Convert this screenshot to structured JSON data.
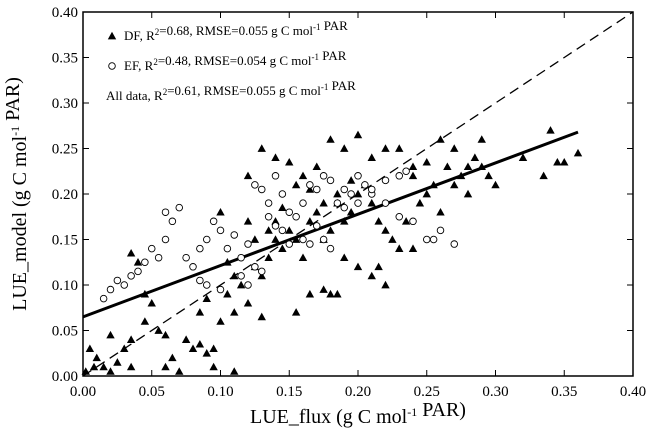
{
  "chart_data": {
    "type": "scatter",
    "title": "",
    "xlabel": "LUE_flux (g C mol-1 PAR)",
    "ylabel": "LUE_model (g C mol-1 PAR)",
    "xlim": [
      0.0,
      0.4
    ],
    "ylim": [
      0.0,
      0.4
    ],
    "x_ticks": [
      "0.00",
      "0.05",
      "0.10",
      "0.15",
      "0.20",
      "0.25",
      "0.30",
      "0.35",
      "0.40"
    ],
    "y_ticks": [
      "0.00",
      "0.05",
      "0.10",
      "0.15",
      "0.20",
      "0.25",
      "0.30",
      "0.35",
      "0.40"
    ],
    "grid": false,
    "legend_position": "top-left",
    "legend": [
      {
        "marker": "filled-triangle",
        "text": "DF, R²=0.68, RMSE=0.055 g C mol⁻¹ PAR"
      },
      {
        "marker": "open-circle",
        "text": "EF, R²=0.48, RMSE=0.054 g C mol⁻¹ PAR"
      },
      {
        "marker": "none",
        "text": "All data, R²=0.61, RMSE=0.055 g C mol⁻¹ PAR"
      }
    ],
    "lines": [
      {
        "name": "1:1",
        "style": "dashed",
        "points": [
          [
            0.0,
            0.0
          ],
          [
            0.4,
            0.4
          ]
        ]
      },
      {
        "name": "regression",
        "style": "solid",
        "points": [
          [
            0.0,
            0.065
          ],
          [
            0.36,
            0.268
          ]
        ]
      }
    ],
    "series": [
      {
        "name": "DF",
        "marker": "filled-triangle",
        "points": [
          [
            0.002,
            0.005
          ],
          [
            0.005,
            0.03
          ],
          [
            0.008,
            0.01
          ],
          [
            0.01,
            0.02
          ],
          [
            0.015,
            0.01
          ],
          [
            0.02,
            0.005
          ],
          [
            0.025,
            0.015
          ],
          [
            0.03,
            0.03
          ],
          [
            0.035,
            0.01
          ],
          [
            0.02,
            0.045
          ],
          [
            0.035,
            0.135
          ],
          [
            0.04,
            0.125
          ],
          [
            0.045,
            0.09
          ],
          [
            0.05,
            0.08
          ],
          [
            0.055,
            0.05
          ],
          [
            0.06,
            0.01
          ],
          [
            0.065,
            0.02
          ],
          [
            0.07,
            0.005
          ],
          [
            0.075,
            0.04
          ],
          [
            0.08,
            0.03
          ],
          [
            0.085,
            0.07
          ],
          [
            0.09,
            0.085
          ],
          [
            0.095,
            0.03
          ],
          [
            0.1,
            0.06
          ],
          [
            0.105,
            0.09
          ],
          [
            0.11,
            0.07
          ],
          [
            0.115,
            0.1
          ],
          [
            0.12,
            0.08
          ],
          [
            0.125,
            0.12
          ],
          [
            0.13,
            0.11
          ],
          [
            0.135,
            0.13
          ],
          [
            0.14,
            0.15
          ],
          [
            0.145,
            0.14
          ],
          [
            0.15,
            0.16
          ],
          [
            0.155,
            0.15
          ],
          [
            0.16,
            0.13
          ],
          [
            0.165,
            0.17
          ],
          [
            0.17,
            0.18
          ],
          [
            0.175,
            0.15
          ],
          [
            0.18,
            0.16
          ],
          [
            0.185,
            0.19
          ],
          [
            0.19,
            0.17
          ],
          [
            0.195,
            0.18
          ],
          [
            0.2,
            0.2
          ],
          [
            0.205,
            0.21
          ],
          [
            0.21,
            0.19
          ],
          [
            0.215,
            0.17
          ],
          [
            0.22,
            0.16
          ],
          [
            0.225,
            0.15
          ],
          [
            0.23,
            0.14
          ],
          [
            0.235,
            0.17
          ],
          [
            0.24,
            0.22
          ],
          [
            0.245,
            0.19
          ],
          [
            0.25,
            0.2
          ],
          [
            0.255,
            0.21
          ],
          [
            0.26,
            0.18
          ],
          [
            0.265,
            0.23
          ],
          [
            0.27,
            0.21
          ],
          [
            0.275,
            0.22
          ],
          [
            0.28,
            0.2
          ],
          [
            0.285,
            0.24
          ],
          [
            0.29,
            0.23
          ],
          [
            0.295,
            0.22
          ],
          [
            0.3,
            0.21
          ],
          [
            0.32,
            0.24
          ],
          [
            0.335,
            0.22
          ],
          [
            0.34,
            0.27
          ],
          [
            0.345,
            0.235
          ],
          [
            0.35,
            0.235
          ],
          [
            0.36,
            0.245
          ],
          [
            0.12,
            0.22
          ],
          [
            0.13,
            0.25
          ],
          [
            0.14,
            0.24
          ],
          [
            0.15,
            0.235
          ],
          [
            0.16,
            0.22
          ],
          [
            0.17,
            0.23
          ],
          [
            0.18,
            0.26
          ],
          [
            0.19,
            0.25
          ],
          [
            0.2,
            0.265
          ],
          [
            0.21,
            0.24
          ],
          [
            0.22,
            0.25
          ],
          [
            0.23,
            0.25
          ],
          [
            0.24,
            0.23
          ],
          [
            0.25,
            0.235
          ],
          [
            0.26,
            0.26
          ],
          [
            0.27,
            0.25
          ],
          [
            0.28,
            0.23
          ],
          [
            0.29,
            0.26
          ],
          [
            0.165,
            0.09
          ],
          [
            0.175,
            0.095
          ],
          [
            0.18,
            0.09
          ],
          [
            0.185,
            0.09
          ],
          [
            0.155,
            0.07
          ],
          [
            0.13,
            0.065
          ],
          [
            0.2,
            0.12
          ],
          [
            0.21,
            0.11
          ],
          [
            0.215,
            0.12
          ],
          [
            0.22,
            0.1
          ],
          [
            0.19,
            0.13
          ],
          [
            0.24,
            0.14
          ],
          [
            0.11,
            0.005
          ],
          [
            0.095,
            0.01
          ],
          [
            0.09,
            0.025
          ],
          [
            0.085,
            0.035
          ],
          [
            0.145,
            0.185
          ],
          [
            0.155,
            0.21
          ],
          [
            0.165,
            0.205
          ],
          [
            0.175,
            0.19
          ],
          [
            0.185,
            0.2
          ],
          [
            0.195,
            0.215
          ],
          [
            0.12,
            0.17
          ],
          [
            0.125,
            0.15
          ],
          [
            0.135,
            0.16
          ],
          [
            0.14,
            0.17
          ],
          [
            0.1,
            0.18
          ],
          [
            0.105,
            0.125
          ],
          [
            0.11,
            0.11
          ],
          [
            0.06,
            0.045
          ],
          [
            0.045,
            0.06
          ],
          [
            0.035,
            0.04
          ]
        ]
      },
      {
        "name": "EF",
        "marker": "open-circle",
        "points": [
          [
            0.015,
            0.085
          ],
          [
            0.02,
            0.095
          ],
          [
            0.025,
            0.105
          ],
          [
            0.03,
            0.1
          ],
          [
            0.035,
            0.11
          ],
          [
            0.04,
            0.115
          ],
          [
            0.045,
            0.125
          ],
          [
            0.05,
            0.14
          ],
          [
            0.055,
            0.13
          ],
          [
            0.06,
            0.15
          ],
          [
            0.06,
            0.18
          ],
          [
            0.065,
            0.17
          ],
          [
            0.07,
            0.185
          ],
          [
            0.075,
            0.13
          ],
          [
            0.08,
            0.12
          ],
          [
            0.085,
            0.14
          ],
          [
            0.09,
            0.15
          ],
          [
            0.095,
            0.17
          ],
          [
            0.1,
            0.16
          ],
          [
            0.105,
            0.14
          ],
          [
            0.11,
            0.155
          ],
          [
            0.115,
            0.13
          ],
          [
            0.12,
            0.145
          ],
          [
            0.125,
            0.21
          ],
          [
            0.13,
            0.205
          ],
          [
            0.135,
            0.19
          ],
          [
            0.14,
            0.22
          ],
          [
            0.145,
            0.2
          ],
          [
            0.15,
            0.18
          ],
          [
            0.155,
            0.175
          ],
          [
            0.16,
            0.19
          ],
          [
            0.165,
            0.21
          ],
          [
            0.17,
            0.205
          ],
          [
            0.175,
            0.22
          ],
          [
            0.18,
            0.215
          ],
          [
            0.185,
            0.19
          ],
          [
            0.19,
            0.205
          ],
          [
            0.195,
            0.2
          ],
          [
            0.2,
            0.22
          ],
          [
            0.205,
            0.21
          ],
          [
            0.21,
            0.2
          ],
          [
            0.22,
            0.19
          ],
          [
            0.23,
            0.175
          ],
          [
            0.24,
            0.17
          ],
          [
            0.25,
            0.15
          ],
          [
            0.255,
            0.15
          ],
          [
            0.26,
            0.16
          ],
          [
            0.27,
            0.145
          ],
          [
            0.15,
            0.145
          ],
          [
            0.16,
            0.15
          ],
          [
            0.17,
            0.165
          ],
          [
            0.175,
            0.15
          ],
          [
            0.18,
            0.14
          ],
          [
            0.12,
            0.1
          ],
          [
            0.115,
            0.11
          ],
          [
            0.125,
            0.12
          ],
          [
            0.13,
            0.115
          ],
          [
            0.09,
            0.1
          ],
          [
            0.085,
            0.105
          ],
          [
            0.1,
            0.095
          ],
          [
            0.135,
            0.175
          ],
          [
            0.14,
            0.165
          ],
          [
            0.145,
            0.16
          ],
          [
            0.165,
            0.145
          ],
          [
            0.19,
            0.185
          ],
          [
            0.2,
            0.19
          ],
          [
            0.21,
            0.205
          ],
          [
            0.22,
            0.215
          ],
          [
            0.23,
            0.22
          ],
          [
            0.235,
            0.225
          ]
        ]
      }
    ]
  }
}
